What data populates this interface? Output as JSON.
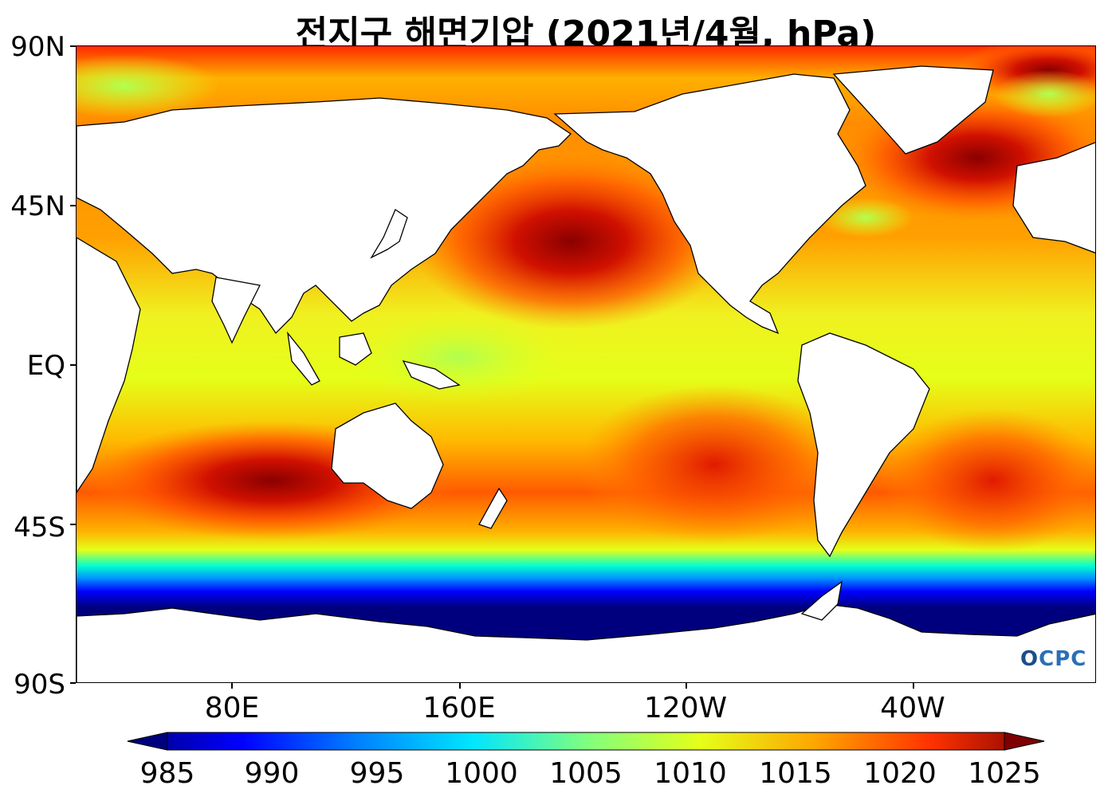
{
  "title": "전지구 해면기압 (2021년/4월, hPa)",
  "lat_labels": [
    "90N",
    "45N",
    "EQ",
    "45S",
    "90S"
  ],
  "lon_labels": [
    "80E",
    "160E",
    "120W",
    "40W"
  ],
  "colorbar": {
    "ticks": [
      "985",
      "990",
      "995",
      "1000",
      "1005",
      "1010",
      "1015",
      "1020",
      "1025"
    ],
    "colors": [
      "#00007f",
      "#0000ff",
      "#007fff",
      "#00e5ff",
      "#7fff7f",
      "#e5ff19",
      "#ffa500",
      "#ff3300",
      "#7f0000"
    ]
  },
  "logo": {
    "text": "CPC",
    "prefix": "O"
  },
  "colors": {
    "antarctic_low": "#00007f",
    "subtropical_high": "#d01000",
    "equatorial": "#e5ff19",
    "land": "#ffffff",
    "coastline": "#000000"
  }
}
